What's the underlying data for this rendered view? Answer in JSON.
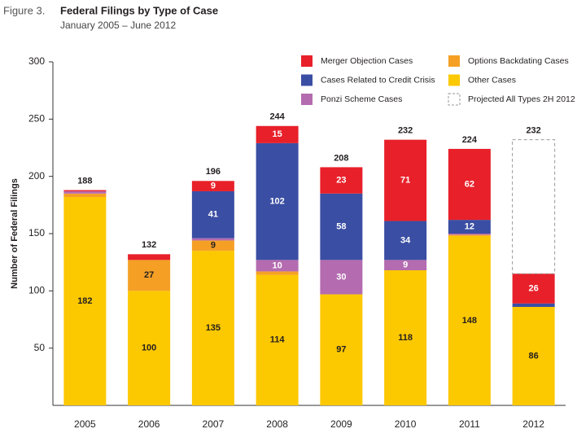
{
  "chart_data": {
    "type": "stacked-bar",
    "figure_label": "Figure 3.",
    "title": "Federal Filings by Type of Case",
    "subtitle": "January 2005 – June 2012",
    "y_label": "Number of Federal Filings",
    "categories": [
      "2005",
      "2006",
      "2007",
      "2008",
      "2009",
      "2010",
      "2011",
      "2012"
    ],
    "series": [
      {
        "name": "Other Cases",
        "color": "#fcc800",
        "values": [
          182,
          100,
          135,
          114,
          97,
          118,
          148,
          86
        ]
      },
      {
        "name": "Options Backdating Cases",
        "color": "#f5a025",
        "values": [
          3,
          27,
          9,
          3,
          0,
          0,
          1,
          0
        ]
      },
      {
        "name": "Ponzi Scheme Cases",
        "color": "#b46bb0",
        "values": [
          2,
          0,
          2,
          10,
          30,
          9,
          1,
          0
        ]
      },
      {
        "name": "Cases Related to Credit Crisis",
        "color": "#3a4ea3",
        "values": [
          0,
          0,
          41,
          102,
          58,
          34,
          12,
          3
        ]
      },
      {
        "name": "Merger Objection Cases",
        "color": "#e8202a",
        "values": [
          1,
          5,
          9,
          15,
          23,
          71,
          62,
          26
        ]
      },
      {
        "name": "Projected All Types 2H 2012",
        "color": "#999999",
        "dashed": true,
        "values": [
          0,
          0,
          0,
          0,
          0,
          0,
          0,
          117
        ]
      }
    ],
    "totals": [
      188,
      132,
      196,
      244,
      208,
      232,
      224,
      232
    ],
    "ylim": [
      0,
      300
    ],
    "yticks": [
      50,
      100,
      150,
      200,
      250,
      300
    ],
    "grid": false
  }
}
